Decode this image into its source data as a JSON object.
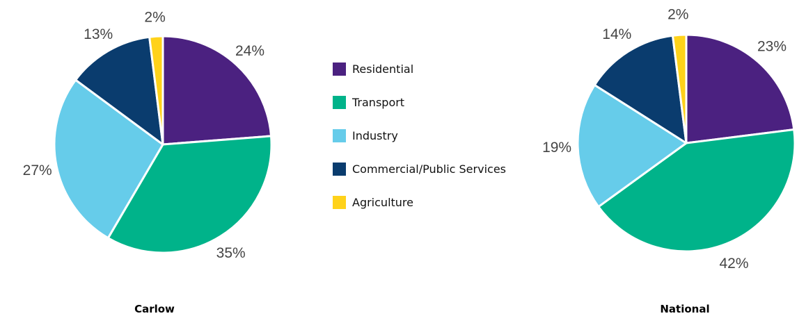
{
  "chart_data": {
    "type": "pie",
    "legend_position": "center",
    "legend": [
      {
        "label": "Residential",
        "color": "#4b2180"
      },
      {
        "label": "Transport",
        "color": "#00b38a"
      },
      {
        "label": "Industry",
        "color": "#66ccea"
      },
      {
        "label": "Commercial/Public Services",
        "color": "#0a3c6e"
      },
      {
        "label": "Agriculture",
        "color": "#ffd21a"
      }
    ],
    "charts": [
      {
        "title": "Carlow",
        "slices": [
          {
            "label": "Residential",
            "value": 24,
            "display": "24%"
          },
          {
            "label": "Transport",
            "value": 35,
            "display": "35%"
          },
          {
            "label": "Industry",
            "value": 27,
            "display": "27%"
          },
          {
            "label": "Commercial/Public Services",
            "value": 13,
            "display": "13%"
          },
          {
            "label": "Agriculture",
            "value": 2,
            "display": "2%"
          }
        ]
      },
      {
        "title": "National",
        "slices": [
          {
            "label": "Residential",
            "value": 23,
            "display": "23%"
          },
          {
            "label": "Transport",
            "value": 42,
            "display": "42%"
          },
          {
            "label": "Industry",
            "value": 19,
            "display": "19%"
          },
          {
            "label": "Commercial/Public Services",
            "value": 14,
            "display": "14%"
          },
          {
            "label": "Agriculture",
            "value": 2,
            "display": "2%"
          }
        ]
      }
    ]
  }
}
